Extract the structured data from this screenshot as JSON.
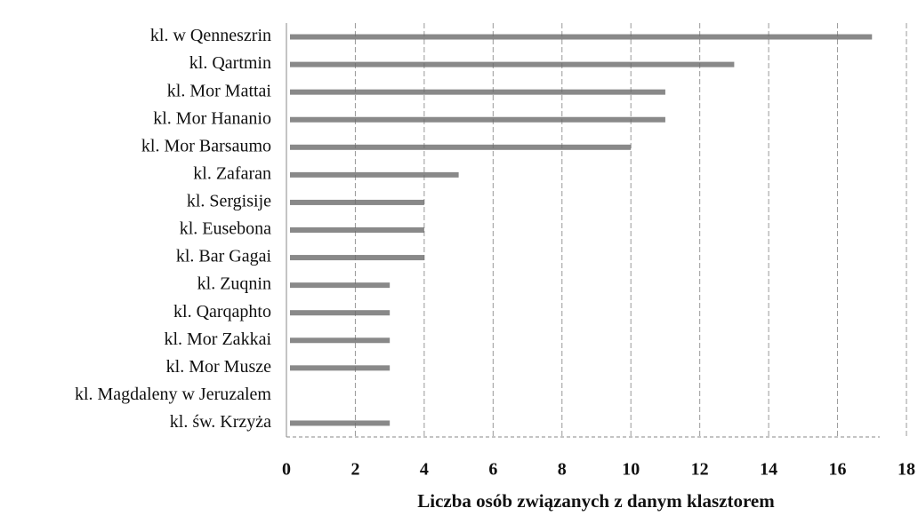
{
  "chart_data": {
    "type": "barh",
    "categories": [
      "kl. w Qenneszrin",
      "kl. Qartmin",
      "kl. Mor Mattai",
      "kl. Mor Hananio",
      "kl. Mor Barsaumo",
      "kl. Zafaran",
      "kl. Sergisije",
      "kl. Eusebona",
      "kl. Bar Gagai",
      "kl. Zuqnin",
      "kl. Qarqaphto",
      "kl. Mor Zakkai",
      "kl. Mor Musze",
      "kl. Magdaleny w Jeruzalem",
      "kl. św. Krzyża"
    ],
    "values": [
      17,
      13,
      11,
      11,
      10,
      5,
      4,
      4,
      4,
      3,
      3,
      3,
      3,
      0,
      3
    ],
    "color": "#6b6b6b",
    "xlabel": "Liczba osób związanych z danym klasztorem",
    "xlim": [
      0,
      18
    ],
    "xticks": [
      0,
      2,
      4,
      6,
      8,
      10,
      12,
      14,
      16,
      18
    ],
    "grid": true
  }
}
